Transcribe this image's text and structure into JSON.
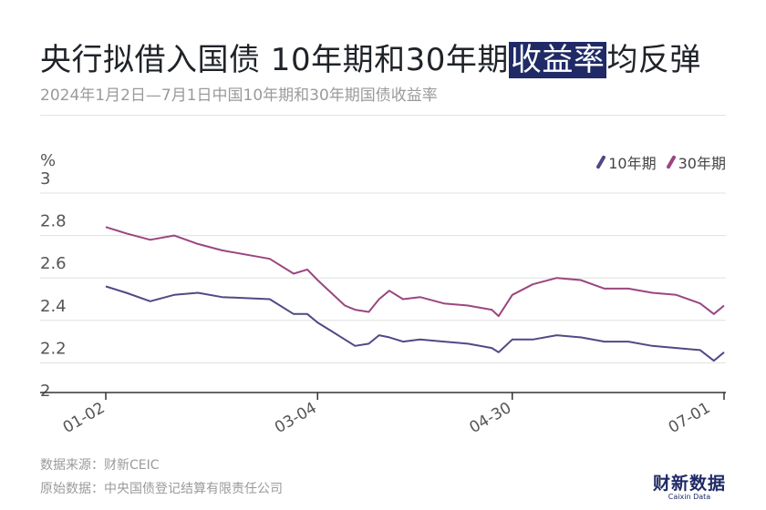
{
  "header": {
    "title_prefix": "央行拟借入国债 10年期和30年期",
    "title_highlight": "收益率",
    "title_suffix": "均反弹",
    "subtitle": "2024年1月2日—7月1日中国10年期和30年期国债收益率"
  },
  "footer": {
    "source": "数据来源：财新CEIC",
    "original": "原始数据：中央国债登记结算有限责任公司"
  },
  "logo": {
    "cn": "财新数据",
    "en": "Caixin Data"
  },
  "colors": {
    "ten_year": "#4e4a85",
    "thirty_year": "#9b4680",
    "grid": "#e0e0e0",
    "axis": "#333333",
    "highlight": "#1f2a66"
  },
  "chart_data": {
    "type": "line",
    "title": "央行拟借入国债 10年期和30年期收益率均反弹",
    "subtitle": "2024年1月2日—7月1日中国10年期和30年期国债收益率",
    "ylabel": "%",
    "ylim": [
      2,
      3
    ],
    "yticks": [
      "2",
      "2.2",
      "2.4",
      "2.6",
      "2.8",
      "3"
    ],
    "ytick_values": [
      2,
      2.2,
      2.4,
      2.6,
      2.8,
      3
    ],
    "xticks": [
      "01-02",
      "03-04",
      "04-30",
      "07-01"
    ],
    "xrange": [
      "2024-01-02",
      "2024-07-01"
    ],
    "legend_position": "top-right",
    "grid": true,
    "series": [
      {
        "name": "10年期",
        "color": "#4e4a85",
        "points": [
          [
            "2024-01-02",
            2.56
          ],
          [
            "2024-01-08",
            2.53
          ],
          [
            "2024-01-15",
            2.49
          ],
          [
            "2024-01-22",
            2.52
          ],
          [
            "2024-01-29",
            2.53
          ],
          [
            "2024-02-05",
            2.51
          ],
          [
            "2024-02-19",
            2.5
          ],
          [
            "2024-02-26",
            2.43
          ],
          [
            "2024-03-01",
            2.43
          ],
          [
            "2024-03-04",
            2.39
          ],
          [
            "2024-03-08",
            2.35
          ],
          [
            "2024-03-12",
            2.31
          ],
          [
            "2024-03-15",
            2.28
          ],
          [
            "2024-03-19",
            2.29
          ],
          [
            "2024-03-22",
            2.33
          ],
          [
            "2024-03-25",
            2.32
          ],
          [
            "2024-03-29",
            2.3
          ],
          [
            "2024-04-03",
            2.31
          ],
          [
            "2024-04-10",
            2.3
          ],
          [
            "2024-04-17",
            2.29
          ],
          [
            "2024-04-24",
            2.27
          ],
          [
            "2024-04-26",
            2.25
          ],
          [
            "2024-04-30",
            2.31
          ],
          [
            "2024-05-06",
            2.31
          ],
          [
            "2024-05-13",
            2.33
          ],
          [
            "2024-05-20",
            2.32
          ],
          [
            "2024-05-27",
            2.3
          ],
          [
            "2024-06-03",
            2.3
          ],
          [
            "2024-06-10",
            2.28
          ],
          [
            "2024-06-17",
            2.27
          ],
          [
            "2024-06-24",
            2.26
          ],
          [
            "2024-06-28",
            2.21
          ],
          [
            "2024-07-01",
            2.25
          ]
        ]
      },
      {
        "name": "30年期",
        "color": "#9b4680",
        "points": [
          [
            "2024-01-02",
            2.84
          ],
          [
            "2024-01-08",
            2.81
          ],
          [
            "2024-01-15",
            2.78
          ],
          [
            "2024-01-22",
            2.8
          ],
          [
            "2024-01-29",
            2.76
          ],
          [
            "2024-02-05",
            2.73
          ],
          [
            "2024-02-19",
            2.69
          ],
          [
            "2024-02-26",
            2.62
          ],
          [
            "2024-03-01",
            2.64
          ],
          [
            "2024-03-04",
            2.59
          ],
          [
            "2024-03-08",
            2.53
          ],
          [
            "2024-03-12",
            2.47
          ],
          [
            "2024-03-15",
            2.45
          ],
          [
            "2024-03-19",
            2.44
          ],
          [
            "2024-03-22",
            2.5
          ],
          [
            "2024-03-25",
            2.54
          ],
          [
            "2024-03-29",
            2.5
          ],
          [
            "2024-04-03",
            2.51
          ],
          [
            "2024-04-10",
            2.48
          ],
          [
            "2024-04-17",
            2.47
          ],
          [
            "2024-04-24",
            2.45
          ],
          [
            "2024-04-26",
            2.42
          ],
          [
            "2024-04-30",
            2.52
          ],
          [
            "2024-05-06",
            2.57
          ],
          [
            "2024-05-13",
            2.6
          ],
          [
            "2024-05-20",
            2.59
          ],
          [
            "2024-05-27",
            2.55
          ],
          [
            "2024-06-03",
            2.55
          ],
          [
            "2024-06-10",
            2.53
          ],
          [
            "2024-06-17",
            2.52
          ],
          [
            "2024-06-24",
            2.48
          ],
          [
            "2024-06-28",
            2.43
          ],
          [
            "2024-07-01",
            2.47
          ]
        ]
      }
    ]
  }
}
